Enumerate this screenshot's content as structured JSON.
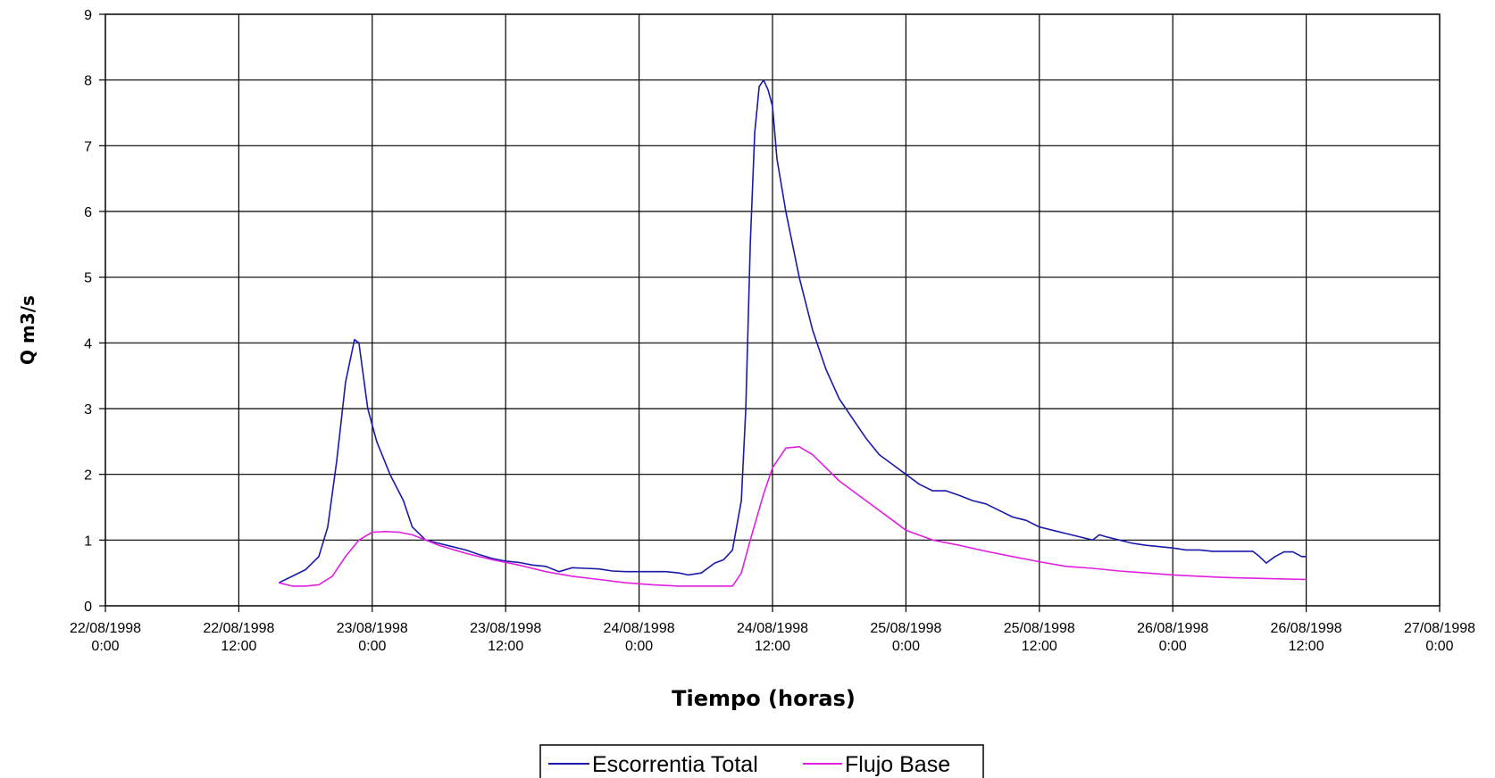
{
  "chart_data": {
    "type": "line",
    "xlabel": "Tiempo (horas)",
    "ylabel": "Q m3/s",
    "ylim": [
      0,
      9
    ],
    "yticks": [
      "0",
      "1",
      "2",
      "3",
      "4",
      "5",
      "6",
      "7",
      "8",
      "9"
    ],
    "xlim": [
      "22/08/1998 0:00",
      "27/08/1998 0:00"
    ],
    "xticks": [
      {
        "date": "22/08/1998",
        "time": "0:00"
      },
      {
        "date": "22/08/1998",
        "time": "12:00"
      },
      {
        "date": "23/08/1998",
        "time": "0:00"
      },
      {
        "date": "23/08/1998",
        "time": "12:00"
      },
      {
        "date": "24/08/1998",
        "time": "0:00"
      },
      {
        "date": "24/08/1998",
        "time": "12:00"
      },
      {
        "date": "25/08/1998",
        "time": "0:00"
      },
      {
        "date": "25/08/1998",
        "time": "12:00"
      },
      {
        "date": "26/08/1998",
        "time": "0:00"
      },
      {
        "date": "26/08/1998",
        "time": "12:00"
      },
      {
        "date": "27/08/1998",
        "time": "0:00"
      }
    ],
    "grid": true,
    "legend_position": "bottom-center",
    "series": [
      {
        "name": "Escorrentia Total",
        "color": "#1a1aaa",
        "points": [
          [
            "22/08/1998 15:36",
            0.35
          ],
          [
            "22/08/1998 16:48",
            0.45
          ],
          [
            "22/08/1998 18:00",
            0.55
          ],
          [
            "22/08/1998 19:12",
            0.75
          ],
          [
            "22/08/1998 20:00",
            1.2
          ],
          [
            "22/08/1998 20:48",
            2.2
          ],
          [
            "22/08/1998 21:36",
            3.4
          ],
          [
            "22/08/1998 22:24",
            4.05
          ],
          [
            "22/08/1998 22:48",
            4.0
          ],
          [
            "22/08/1998 23:36",
            3.0
          ],
          [
            "23/08/1998 0:24",
            2.5
          ],
          [
            "23/08/1998 1:36",
            2.0
          ],
          [
            "23/08/1998 2:48",
            1.6
          ],
          [
            "23/08/1998 3:36",
            1.2
          ],
          [
            "23/08/1998 4:48",
            1.0
          ],
          [
            "23/08/1998 6:00",
            0.95
          ],
          [
            "23/08/1998 7:12",
            0.9
          ],
          [
            "23/08/1998 8:24",
            0.85
          ],
          [
            "23/08/1998 9:36",
            0.78
          ],
          [
            "23/08/1998 10:48",
            0.72
          ],
          [
            "23/08/1998 12:00",
            0.68
          ],
          [
            "23/08/1998 13:12",
            0.66
          ],
          [
            "23/08/1998 14:24",
            0.62
          ],
          [
            "23/08/1998 15:36",
            0.6
          ],
          [
            "23/08/1998 16:48",
            0.52
          ],
          [
            "23/08/1998 18:00",
            0.58
          ],
          [
            "23/08/1998 19:12",
            0.57
          ],
          [
            "23/08/1998 20:24",
            0.56
          ],
          [
            "23/08/1998 21:36",
            0.53
          ],
          [
            "23/08/1998 22:48",
            0.52
          ],
          [
            "24/08/1998 0:00",
            0.52
          ],
          [
            "24/08/1998 1:12",
            0.52
          ],
          [
            "24/08/1998 2:24",
            0.52
          ],
          [
            "24/08/1998 3:36",
            0.5
          ],
          [
            "24/08/1998 4:24",
            0.47
          ],
          [
            "24/08/1998 5:36",
            0.5
          ],
          [
            "24/08/1998 6:48",
            0.65
          ],
          [
            "24/08/1998 7:36",
            0.7
          ],
          [
            "24/08/1998 8:24",
            0.85
          ],
          [
            "24/08/1998 9:12",
            1.6
          ],
          [
            "24/08/1998 9:36",
            3.0
          ],
          [
            "24/08/1998 10:00",
            5.5
          ],
          [
            "24/08/1998 10:24",
            7.2
          ],
          [
            "24/08/1998 10:48",
            7.9
          ],
          [
            "24/08/1998 11:12",
            8.0
          ],
          [
            "24/08/1998 11:36",
            7.85
          ],
          [
            "24/08/1998 12:00",
            7.6
          ],
          [
            "24/08/1998 12:24",
            6.8
          ],
          [
            "24/08/1998 13:12",
            6.0
          ],
          [
            "24/08/1998 14:24",
            5.0
          ],
          [
            "24/08/1998 15:36",
            4.2
          ],
          [
            "24/08/1998 16:48",
            3.6
          ],
          [
            "24/08/1998 18:00",
            3.15
          ],
          [
            "24/08/1998 19:12",
            2.85
          ],
          [
            "24/08/1998 20:24",
            2.55
          ],
          [
            "24/08/1998 21:36",
            2.3
          ],
          [
            "24/08/1998 22:48",
            2.15
          ],
          [
            "25/08/1998 0:00",
            2.0
          ],
          [
            "25/08/1998 1:12",
            1.85
          ],
          [
            "25/08/1998 2:24",
            1.75
          ],
          [
            "25/08/1998 3:36",
            1.75
          ],
          [
            "25/08/1998 4:48",
            1.68
          ],
          [
            "25/08/1998 6:00",
            1.6
          ],
          [
            "25/08/1998 7:12",
            1.55
          ],
          [
            "25/08/1998 8:24",
            1.45
          ],
          [
            "25/08/1998 9:36",
            1.35
          ],
          [
            "25/08/1998 10:48",
            1.3
          ],
          [
            "25/08/1998 12:00",
            1.2
          ],
          [
            "25/08/1998 13:12",
            1.15
          ],
          [
            "25/08/1998 14:24",
            1.1
          ],
          [
            "25/08/1998 15:36",
            1.05
          ],
          [
            "25/08/1998 16:48",
            1.0
          ],
          [
            "25/08/1998 17:24",
            1.08
          ],
          [
            "25/08/1998 18:00",
            1.05
          ],
          [
            "25/08/1998 19:12",
            1.0
          ],
          [
            "25/08/1998 20:24",
            0.95
          ],
          [
            "25/08/1998 21:36",
            0.92
          ],
          [
            "25/08/1998 22:48",
            0.9
          ],
          [
            "26/08/1998 0:00",
            0.88
          ],
          [
            "26/08/1998 1:12",
            0.85
          ],
          [
            "26/08/1998 2:24",
            0.85
          ],
          [
            "26/08/1998 3:36",
            0.83
          ],
          [
            "26/08/1998 4:48",
            0.83
          ],
          [
            "26/08/1998 6:00",
            0.83
          ],
          [
            "26/08/1998 7:12",
            0.83
          ],
          [
            "26/08/1998 7:48",
            0.75
          ],
          [
            "26/08/1998 8:24",
            0.65
          ],
          [
            "26/08/1998 9:12",
            0.75
          ],
          [
            "26/08/1998 10:00",
            0.82
          ],
          [
            "26/08/1998 10:48",
            0.82
          ],
          [
            "26/08/1998 11:36",
            0.75
          ],
          [
            "26/08/1998 12:00",
            0.75
          ]
        ]
      },
      {
        "name": "Flujo Base",
        "color": "#e020e0",
        "points": [
          [
            "22/08/1998 15:36",
            0.35
          ],
          [
            "22/08/1998 16:48",
            0.3
          ],
          [
            "22/08/1998 18:00",
            0.3
          ],
          [
            "22/08/1998 19:12",
            0.32
          ],
          [
            "22/08/1998 20:24",
            0.45
          ],
          [
            "22/08/1998 21:36",
            0.75
          ],
          [
            "22/08/1998 22:48",
            1.0
          ],
          [
            "23/08/1998 0:00",
            1.12
          ],
          [
            "23/08/1998 1:12",
            1.13
          ],
          [
            "23/08/1998 2:24",
            1.12
          ],
          [
            "23/08/1998 3:36",
            1.08
          ],
          [
            "23/08/1998 4:48",
            1.0
          ],
          [
            "23/08/1998 6:00",
            0.92
          ],
          [
            "23/08/1998 8:24",
            0.8
          ],
          [
            "23/08/1998 10:48",
            0.7
          ],
          [
            "23/08/1998 13:12",
            0.62
          ],
          [
            "23/08/1998 15:36",
            0.52
          ],
          [
            "23/08/1998 18:00",
            0.45
          ],
          [
            "23/08/1998 20:24",
            0.4
          ],
          [
            "23/08/1998 22:48",
            0.35
          ],
          [
            "24/08/1998 1:12",
            0.32
          ],
          [
            "24/08/1998 3:36",
            0.3
          ],
          [
            "24/08/1998 6:00",
            0.3
          ],
          [
            "24/08/1998 7:12",
            0.3
          ],
          [
            "24/08/1998 8:24",
            0.3
          ],
          [
            "24/08/1998 9:12",
            0.5
          ],
          [
            "24/08/1998 10:00",
            1.0
          ],
          [
            "24/08/1998 11:12",
            1.7
          ],
          [
            "24/08/1998 12:00",
            2.1
          ],
          [
            "24/08/1998 13:12",
            2.4
          ],
          [
            "24/08/1998 14:24",
            2.42
          ],
          [
            "24/08/1998 15:36",
            2.3
          ],
          [
            "24/08/1998 16:48",
            2.1
          ],
          [
            "24/08/1998 18:00",
            1.9
          ],
          [
            "24/08/1998 20:24",
            1.6
          ],
          [
            "24/08/1998 22:48",
            1.3
          ],
          [
            "25/08/1998 0:00",
            1.15
          ],
          [
            "25/08/1998 2:24",
            1.0
          ],
          [
            "25/08/1998 4:48",
            0.92
          ],
          [
            "25/08/1998 7:12",
            0.83
          ],
          [
            "25/08/1998 9:36",
            0.75
          ],
          [
            "25/08/1998 12:00",
            0.67
          ],
          [
            "25/08/1998 14:24",
            0.6
          ],
          [
            "25/08/1998 16:48",
            0.57
          ],
          [
            "25/08/1998 19:12",
            0.53
          ],
          [
            "25/08/1998 21:36",
            0.5
          ],
          [
            "26/08/1998 0:00",
            0.47
          ],
          [
            "26/08/1998 2:24",
            0.45
          ],
          [
            "26/08/1998 4:48",
            0.43
          ],
          [
            "26/08/1998 7:12",
            0.42
          ],
          [
            "26/08/1998 9:36",
            0.41
          ],
          [
            "26/08/1998 12:00",
            0.4
          ]
        ]
      }
    ]
  }
}
